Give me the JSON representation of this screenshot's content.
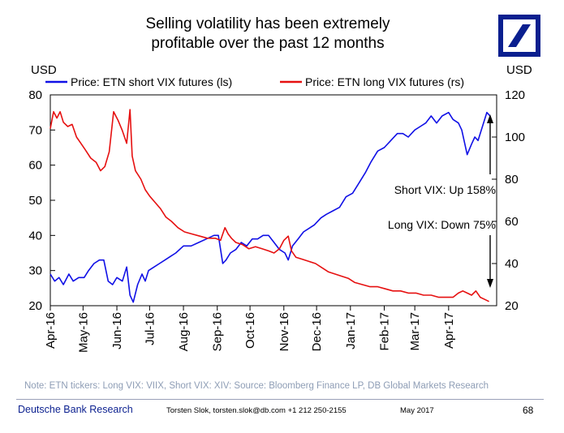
{
  "title_line1": "Selling volatility has been extremely",
  "title_line2": "profitable over the past 12 months",
  "note": "Note: ETN tickers: Long VIX: VIIX, Short VIX: XIV: Source: Bloomberg Finance LP, DB Global Markets Research",
  "footer": {
    "brand": "Deutsche Bank Research",
    "contact": "Torsten Slok, torsten.slok@db.com  +1 212 250-2155",
    "date": "May 2017",
    "page": "68"
  },
  "colors": {
    "short": "#1010e6",
    "long": "#e61010",
    "logo": "#0a1f8f"
  },
  "chart_data": {
    "type": "line",
    "x_type": "date",
    "ylabel_left": "USD",
    "ylabel_right": "USD",
    "ylim_left": [
      20,
      80
    ],
    "ylim_right": [
      20,
      120
    ],
    "yticks_left": [
      20,
      30,
      40,
      50,
      60,
      70,
      80
    ],
    "yticks_right": [
      20,
      40,
      60,
      80,
      100,
      120
    ],
    "xlim": [
      "2016-04-01",
      "2017-05-15"
    ],
    "xticks": [
      {
        "date": "2016-04-01",
        "label": "Apr-16"
      },
      {
        "date": "2016-05-01",
        "label": "May-16"
      },
      {
        "date": "2016-06-01",
        "label": "Jun-16"
      },
      {
        "date": "2016-07-01",
        "label": "Jul-16"
      },
      {
        "date": "2016-08-01",
        "label": "Aug-16"
      },
      {
        "date": "2016-09-01",
        "label": "Sep-16"
      },
      {
        "date": "2016-10-01",
        "label": "Oct-16"
      },
      {
        "date": "2016-11-01",
        "label": "Nov-16"
      },
      {
        "date": "2016-12-01",
        "label": "Dec-16"
      },
      {
        "date": "2017-01-01",
        "label": "Jan-17"
      },
      {
        "date": "2017-02-01",
        "label": "Feb-17"
      },
      {
        "date": "2017-03-01",
        "label": "Mar-17"
      },
      {
        "date": "2017-04-01",
        "label": "Apr-17"
      }
    ],
    "grid": false,
    "legend_position": "top",
    "series": [
      {
        "name": "Price: ETN short VIX futures (ls)",
        "axis": "left",
        "x": [
          "2016-04-01",
          "2016-04-05",
          "2016-04-09",
          "2016-04-13",
          "2016-04-18",
          "2016-04-22",
          "2016-04-27",
          "2016-05-02",
          "2016-05-06",
          "2016-05-11",
          "2016-05-16",
          "2016-05-20",
          "2016-05-24",
          "2016-05-28",
          "2016-06-01",
          "2016-06-06",
          "2016-06-10",
          "2016-06-13",
          "2016-06-16",
          "2016-06-20",
          "2016-06-24",
          "2016-06-27",
          "2016-06-30",
          "2016-07-05",
          "2016-07-10",
          "2016-07-15",
          "2016-07-20",
          "2016-07-25",
          "2016-08-01",
          "2016-08-08",
          "2016-08-15",
          "2016-08-22",
          "2016-08-29",
          "2016-09-02",
          "2016-09-06",
          "2016-09-09",
          "2016-09-13",
          "2016-09-18",
          "2016-09-23",
          "2016-09-28",
          "2016-10-03",
          "2016-10-08",
          "2016-10-13",
          "2016-10-18",
          "2016-10-23",
          "2016-10-28",
          "2016-11-02",
          "2016-11-05",
          "2016-11-09",
          "2016-11-14",
          "2016-11-19",
          "2016-11-24",
          "2016-11-29",
          "2016-12-05",
          "2016-12-10",
          "2016-12-16",
          "2016-12-22",
          "2016-12-28",
          "2017-01-03",
          "2017-01-09",
          "2017-01-15",
          "2017-01-20",
          "2017-01-26",
          "2017-02-01",
          "2017-02-07",
          "2017-02-13",
          "2017-02-18",
          "2017-02-23",
          "2017-03-01",
          "2017-03-06",
          "2017-03-11",
          "2017-03-16",
          "2017-03-21",
          "2017-03-26",
          "2017-04-01",
          "2017-04-05",
          "2017-04-10",
          "2017-04-13",
          "2017-04-18",
          "2017-04-22",
          "2017-04-25",
          "2017-04-28",
          "2017-05-02",
          "2017-05-06",
          "2017-05-09"
        ],
        "y": [
          29,
          27,
          28,
          26,
          29,
          27,
          28,
          28,
          30,
          32,
          33,
          33,
          27,
          26,
          28,
          27,
          31,
          23,
          21,
          26,
          29,
          27,
          30,
          31,
          32,
          33,
          34,
          35,
          37,
          37,
          38,
          39,
          40,
          40,
          32,
          33,
          35,
          36,
          38,
          37,
          39,
          39,
          40,
          40,
          38,
          36,
          35,
          33,
          37,
          39,
          41,
          42,
          43,
          45,
          46,
          47,
          48,
          51,
          52,
          55,
          58,
          61,
          64,
          65,
          67,
          69,
          69,
          68,
          70,
          71,
          72,
          74,
          72,
          74,
          75,
          73,
          72,
          70,
          63,
          66,
          68,
          67,
          71,
          75,
          74
        ]
      },
      {
        "name": "Price: ETN long VIX futures (rs)",
        "axis": "right",
        "x": [
          "2016-04-01",
          "2016-04-04",
          "2016-04-07",
          "2016-04-10",
          "2016-04-13",
          "2016-04-17",
          "2016-04-21",
          "2016-04-25",
          "2016-04-29",
          "2016-05-03",
          "2016-05-08",
          "2016-05-13",
          "2016-05-17",
          "2016-05-21",
          "2016-05-25",
          "2016-05-29",
          "2016-06-02",
          "2016-06-06",
          "2016-06-10",
          "2016-06-13",
          "2016-06-15",
          "2016-06-18",
          "2016-06-23",
          "2016-06-27",
          "2016-07-01",
          "2016-07-06",
          "2016-07-11",
          "2016-07-16",
          "2016-07-21",
          "2016-07-27",
          "2016-08-02",
          "2016-08-09",
          "2016-08-16",
          "2016-08-23",
          "2016-08-30",
          "2016-09-04",
          "2016-09-08",
          "2016-09-11",
          "2016-09-14",
          "2016-09-18",
          "2016-09-24",
          "2016-09-30",
          "2016-10-06",
          "2016-10-12",
          "2016-10-18",
          "2016-10-23",
          "2016-10-28",
          "2016-11-01",
          "2016-11-05",
          "2016-11-08",
          "2016-11-12",
          "2016-11-18",
          "2016-11-24",
          "2016-11-30",
          "2016-12-06",
          "2016-12-12",
          "2016-12-18",
          "2016-12-24",
          "2016-12-30",
          "2017-01-05",
          "2017-01-12",
          "2017-01-19",
          "2017-01-26",
          "2017-02-02",
          "2017-02-09",
          "2017-02-16",
          "2017-02-23",
          "2017-03-02",
          "2017-03-09",
          "2017-03-16",
          "2017-03-23",
          "2017-03-30",
          "2017-04-05",
          "2017-04-10",
          "2017-04-14",
          "2017-04-18",
          "2017-04-22",
          "2017-04-26",
          "2017-04-30",
          "2017-05-04",
          "2017-05-08"
        ],
        "y": [
          104,
          112,
          109,
          112,
          107,
          105,
          106,
          100,
          97,
          94,
          90,
          88,
          84,
          86,
          93,
          112,
          108,
          103,
          97,
          113,
          91,
          84,
          80,
          75,
          72,
          69,
          66,
          62,
          60,
          57,
          55,
          54,
          53,
          52,
          52,
          51,
          57,
          54,
          52,
          50,
          49,
          47,
          48,
          47,
          46,
          45,
          47,
          51,
          53,
          46,
          43,
          42,
          41,
          40,
          38,
          36,
          35,
          34,
          33,
          31,
          30,
          29,
          29,
          28,
          27,
          27,
          26,
          26,
          25,
          25,
          24,
          24,
          24,
          26,
          27,
          26,
          25,
          27,
          24,
          23,
          22
        ]
      }
    ],
    "annotations": [
      {
        "text": "Short VIX: Up 158%"
      },
      {
        "text": "Long VIX: Down 75%"
      }
    ]
  }
}
